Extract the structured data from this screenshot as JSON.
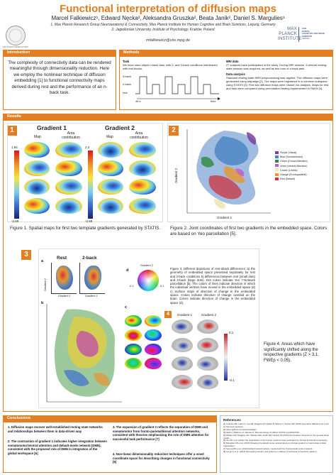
{
  "header": {
    "title": "Functional interpretation of diffusion maps",
    "authors": "Marcel Falkiewicz¹, Edward Nęcka², Aleksandra Gruszka², Beata Janik², Daniel S. Margulies¹",
    "affiliation1": "1. Max Planck Research Group Neuroanatomy & Connectivity, Max Planck Institute for Human Cognitive and Brain Sciences, Leipzig, Germany",
    "affiliation2": "2. Jagiellonian University, Institute of Psychology, Kraków, Poland",
    "email": "mfalkiewicz@cbs.mpg.de",
    "left_logo_caption": "MAX-PLANCK-GESELLSCHAFT",
    "right_logo": {
      "line1": "MAX",
      "line2": "PLANCK",
      "line3": "INSTITUTE",
      "side1": "FOR",
      "side2": "HUMAN",
      "side3": "COGNITIVE AND BRAIN SCIENCES",
      "side4": "LEIPZIG"
    }
  },
  "introduction": {
    "label": "Introduction",
    "text": "The complexity of connectivity data can be rendered meaningful through dimensionality reduction. Here we employ the nonlinear technique of diffusion embedding [1] to functional connectivity maps derived during rest and the performance of an n-back task."
  },
  "methods": {
    "label": "Methods",
    "task_head": "Task",
    "task_text": "We have used object n-back task, with 2- and 3-back conditions interleaved with rest blocks.",
    "task_fig": {
      "row1": "3-back",
      "row2": "2-back",
      "row3": "rest",
      "time_start": "46 s",
      "time_end": "time"
    },
    "mri_head": "MRI data",
    "mri_text": "27 subjects have participated in the study. During MRI session, 6-minute resting-state session was acquired, as well as two runs of n-back task.",
    "analysis_head": "Data analysis",
    "analysis_text": "Standard resting-state fMRI preprocessing was applied. The diffusion maps were generated using mapalign [2]. The maps were registered to a common subspace using STATIS [3]. First two diffusion maps were chosen for analysis. Maps for rest and task were compared using permutation testing implemented in PALM [4]."
  },
  "results": {
    "label": "Results",
    "panel1": {
      "num": "1",
      "gradient1": "Gradient 1",
      "gradient2": "Gradient 2",
      "col_map": "Map",
      "col_area": "Area contribution",
      "scale1_max": "1.94",
      "scale1_min": "-2.59",
      "scale2_max": "2.2",
      "scale2_min": "-2.59",
      "caption": "Figure 1. Spatial maps for first two template gradients generated by STATIS."
    },
    "panel2": {
      "num": "2",
      "ylabel": "Gradient 2",
      "xlabel": "Gradient 1",
      "legend": [
        {
          "label": "Purple (Visual)",
          "color": "#7b3fa0"
        },
        {
          "label": "Blue (Somatomotor)",
          "color": "#4a83c4"
        },
        {
          "label": "Green (Dorsal Attention)",
          "color": "#2d8a3e"
        },
        {
          "label": "Violet (Ventral Attention)",
          "color": "#c25ec9"
        },
        {
          "label": "Cream (Limbic)",
          "color": "#efe6b0"
        },
        {
          "label": "Orange (Frontoparietal)",
          "color": "#e8962e"
        },
        {
          "label": "Red (Default)",
          "color": "#cc3440"
        }
      ],
      "caption": "Figure 2. Joint coordinates of first two gradients in the embedded space. Colors are based on Yeo parcellation [5]."
    },
    "panel3": {
      "num": "3",
      "sub_a": "a",
      "sub_b": "b",
      "sub_c": "c",
      "sub_d": "d",
      "rest": "Rest",
      "twoback": "2-back",
      "grad1": "Gradient 1",
      "grad2": "Gradient 2",
      "d_top": "Gradient 2",
      "d_right": "0.1",
      "d_left": "-0.1",
      "caption": "Figure 3. Different depictions of rest-2back differences: a) the geometry of embedded space presented separately for rest and 2-back conditions b) differences between rest (small dots) and 2-back (large dots). Dot colors indicate Yeo 7-Network parcellation [5]. The colors of lines indicate direction in which the individual vertices have moved in the embedded space (d) c) Surface maps of direction of change in the embedded space. Colors indicate direction of change overlaid on the brain. Colors indicate direction of change in the embedded space (d)."
    },
    "panel4": {
      "num": "4",
      "grad1": "Gradient 1",
      "grad2": "Gradient 2",
      "scale_max": "0.1",
      "scale_min": "-0.1",
      "caption": "Figure 4. Areas which have significantly shifted along the respective gradients (Z > 3.1, FWEp < 0.05)."
    }
  },
  "conclusions": {
    "label": "Conclusions",
    "items": [
      "1. Diffusion maps recover well-established resting state networks and relationships between them in data-driven way",
      "2. The contraction of gradient 1 indicates higher integration between somatomotor/ventral attention and default-mode network (DMN), consistent with the proposed role of DMN in integration of the global workspace [6]",
      "3. The expansion of gradient 2 reflects the separation of DMN and somatomotor from fronto-parietal/dorsal attention networks, consistent with theories emphasizing the role of DMN attention for successful task performance [7]",
      "4. Non-linear dimensionality reduction techniques offer a novel coordinate space for describing changes in functional connectivity [8]"
    ]
  },
  "references": {
    "label": "References",
    "items": [
      "[1] Coifman RR, Lafon S, Lee AB, Maggioni M, Nadler B, Warner F, Zucker SW (2005) Geometric diffusions as a tool for harmonic analysis...",
      "[2] https://github.com/satra/mapalign",
      "[3] Abdi H, Williams LJ, Valentin D, Bennani-Dosse M (2012) STATIS and DISTATIS...",
      "[4] Winkler AM, Ridgway GR, Webster MA, Smith SM, Nichols TE (2014) Permutation inference for the general linear model...",
      "[5] Yeo BT et al. (2011) The organization of the human cerebral cortex estimated by intrinsic functional connectivity...",
      "[6] Margulies DS et al. (2016) Situating the default-mode network along a principal gradient of macroscale cortical organization...",
      "[7] Spreng RN et al. (2010) Default network activity, coupled with the frontoparietal control network...",
      "[8] Langs G et al. (2016) Decoupling function and anatomy in atlases of functional connectivity patterns..."
    ]
  },
  "colors": {
    "accent": "#e37f22",
    "title": "#e07d1f"
  }
}
